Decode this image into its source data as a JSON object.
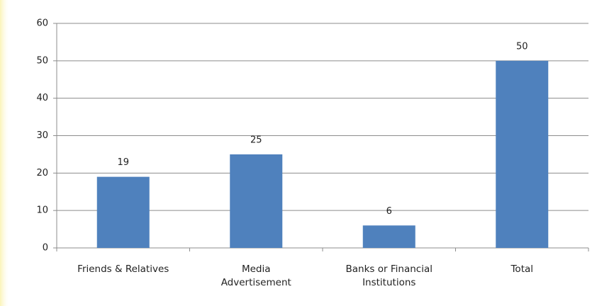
{
  "chart_data": {
    "type": "bar",
    "categories": [
      "Friends & Relatives",
      "Media\nAdvertisement",
      "Banks or Financial\nInstitutions",
      "Total"
    ],
    "values": [
      19,
      25,
      6,
      50
    ],
    "color": "#4f81bd",
    "ylim": [
      0,
      60
    ],
    "yticks": [
      0,
      10,
      20,
      30,
      40,
      50,
      60
    ],
    "grid": true
  }
}
